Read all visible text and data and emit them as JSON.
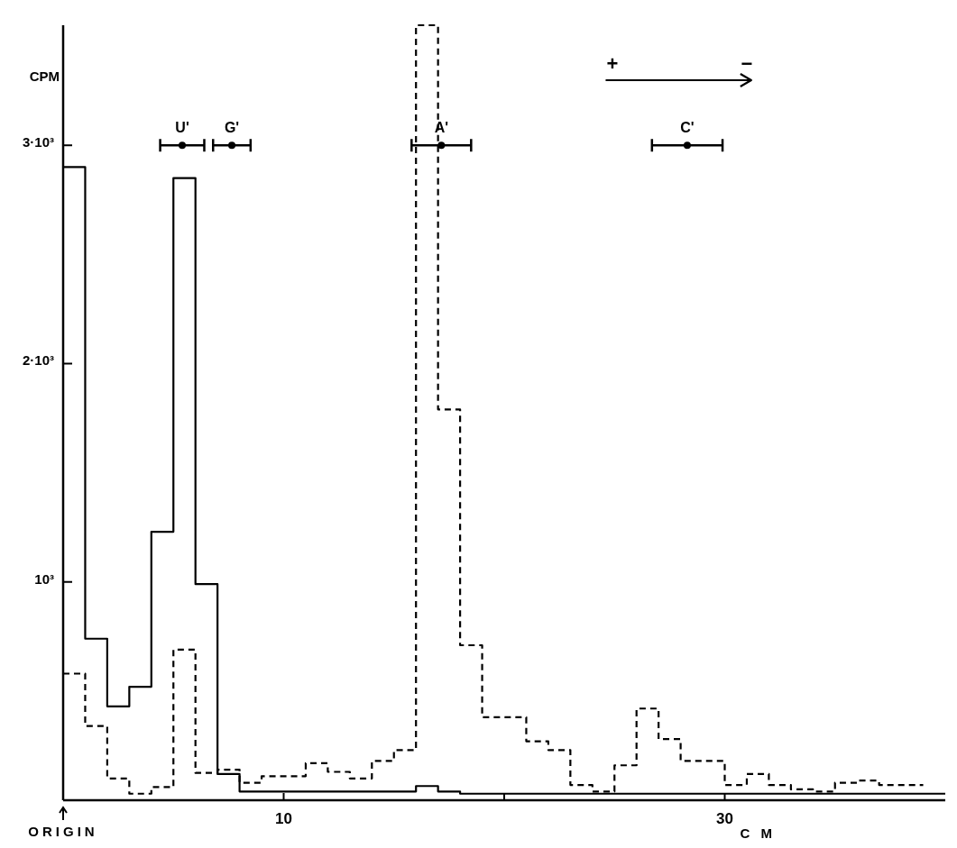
{
  "chart_data": {
    "type": "step",
    "xlabel": "C M",
    "ylabel": "CPM",
    "x": [
      0,
      1,
      2,
      3,
      4,
      5,
      6,
      7,
      8,
      9,
      10,
      11,
      12,
      13,
      14,
      15,
      16,
      17,
      18,
      19,
      20,
      21,
      22,
      23,
      24,
      25,
      26,
      27,
      28,
      29,
      30,
      31,
      32,
      33,
      34,
      35,
      36,
      37,
      38,
      39,
      40
    ],
    "series": [
      {
        "color": "#000000",
        "line_style": "solid",
        "values": [
          2900,
          740,
          430,
          520,
          1230,
          2850,
          990,
          120,
          40,
          40,
          40,
          40,
          40,
          40,
          40,
          40,
          65,
          40,
          30,
          30,
          30,
          30,
          30,
          30,
          30,
          30,
          30,
          30,
          30,
          30,
          30,
          30,
          30,
          30,
          30,
          30,
          30,
          30,
          30,
          30,
          30
        ]
      },
      {
        "color": "#000000",
        "line_style": "dashed",
        "values": [
          580,
          340,
          100,
          30,
          60,
          690,
          125,
          140,
          80,
          110,
          110,
          170,
          130,
          100,
          180,
          230,
          3550,
          1790,
          710,
          380,
          380,
          270,
          230,
          70,
          40,
          160,
          420,
          280,
          180,
          180,
          70,
          120,
          70,
          50,
          40,
          80,
          90,
          70,
          70,
          70,
          null
        ]
      },
      {
        "type": "scatter",
        "color": "#000000",
        "x": [
          5.4,
          7.65,
          17.15,
          28.3
        ],
        "values": [
          3000,
          3000,
          3000,
          3000
        ],
        "xerrors": [
          1.0,
          0.85,
          1.35,
          1.6
        ]
      }
    ],
    "xlim": [
      0,
      40
    ],
    "ylim": [
      0,
      3550
    ],
    "xticks": [
      10,
      {
        "value": 20,
        "label": null
      },
      30
    ],
    "yticks": [
      {
        "value": 1000,
        "label": "10³"
      },
      {
        "value": 2000,
        "label": "2·10³"
      },
      {
        "value": 3000,
        "label": "3·10³"
      }
    ],
    "annotations": [
      "ORIGIN",
      "+",
      "−",
      {
        "text": "U'",
        "x": 5.4,
        "y": 3000
      },
      {
        "text": "G'",
        "x": 7.65,
        "y": 3000
      },
      {
        "text": "A'",
        "x": 17.15,
        "y": 3000
      },
      {
        "text": "C'",
        "x": 28.3,
        "y": 3000
      }
    ],
    "grid": false
  }
}
